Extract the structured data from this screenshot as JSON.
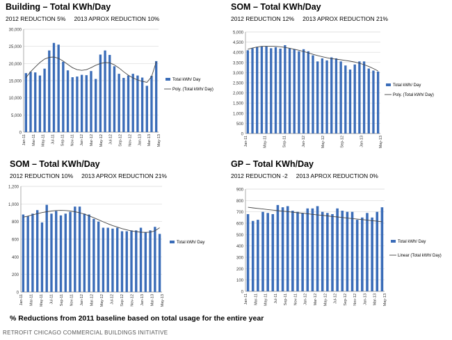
{
  "footnote": "% Reductions from 2011 baseline based on total usage for the entire year",
  "credit": "RETROFIT CHICAGO COMMERCIAL BUILDINGS INITIATIVE",
  "charts": [
    {
      "title": "Building – Total KWh/Day",
      "reduction_2012": "2012 REDUCTION 5%",
      "reduction_2013": "2013 APROX REDUCTION 10%"
    },
    {
      "title": "SOM – Total KWh/Day",
      "reduction_2012": "2012 REDUCTION 12%",
      "reduction_2013": "2013 APROX REDUCTION 21%"
    },
    {
      "title": "SOM – Total KWh/Day",
      "reduction_2012": "2012 REDUCTION 10%",
      "reduction_2013": "2013 APROX REDUCTION 21%"
    },
    {
      "title": "GP – Total KWh/Day",
      "reduction_2012": "2012 REDUCTION -2",
      "reduction_2013": "2013 APROX REDUCTION 0%"
    }
  ],
  "chart_data": [
    {
      "type": "bar",
      "title": "Building – Total KWh/Day",
      "series_name": "Total kWh/ Day",
      "trend_name": "Poly. (Total kWh/ Day)",
      "trend_type": "poly",
      "ylim": [
        0,
        30000
      ],
      "yticks": [
        "0",
        "5,000",
        "10,000",
        "15,000",
        "20,000",
        "25,000",
        "30,000"
      ],
      "ytick_values": [
        0,
        5000,
        10000,
        15000,
        20000,
        25000,
        30000
      ],
      "xlabels": [
        "Jan-11",
        "Mar-11",
        "May-11",
        "Jul-11",
        "Sep-11",
        "Nov-11",
        "Jan-12",
        "Mar-12",
        "May-12",
        "Jul-12",
        "Sep-12",
        "Nov-12",
        "Jan-13",
        "Mar-13",
        "May-13"
      ],
      "values": [
        17200,
        17600,
        17400,
        16500,
        18500,
        23800,
        26000,
        25500,
        20500,
        18000,
        16000,
        16200,
        16700,
        16600,
        17800,
        15500,
        22600,
        23800,
        22500,
        19200,
        17000,
        15800,
        16500,
        17000,
        16500,
        15900,
        13500,
        16400,
        20700
      ],
      "trend": [
        15900,
        17600,
        19000,
        20300,
        21300,
        21800,
        21900,
        21500,
        20700,
        19700,
        18800,
        18200,
        18000,
        18200,
        18800,
        19500,
        20000,
        20300,
        20200,
        19600,
        18700,
        17600,
        16600,
        15800,
        15200,
        14800,
        14500,
        16200,
        20500
      ]
    },
    {
      "type": "bar",
      "title": "SOM – Total KWh/Day",
      "series_name": "Total kWh/ Day",
      "trend_name": "Poly. (Total kWh/ Day)",
      "trend_type": "poly",
      "ylim": [
        0,
        5000
      ],
      "yticks": [
        "0",
        "500",
        "1,000",
        "1,500",
        "2,000",
        "2,500",
        "3,000",
        "3,500",
        "4,000",
        "4,500",
        "5,000"
      ],
      "ytick_values": [
        0,
        500,
        1000,
        1500,
        2000,
        2500,
        3000,
        3500,
        4000,
        4500,
        5000
      ],
      "xlabels": [
        "Jan-11",
        "May-11",
        "Sep-11",
        "Jan-12",
        "May-12",
        "Sep-12",
        "Jan-13",
        "May-13"
      ],
      "values": [
        4100,
        4200,
        4250,
        4300,
        4280,
        4200,
        4250,
        4180,
        4350,
        4200,
        4150,
        4050,
        4150,
        4050,
        3850,
        3550,
        3700,
        3600,
        3750,
        3700,
        3550,
        3350,
        3150,
        3400,
        3550,
        3550,
        3200,
        3100,
        3050
      ],
      "trend": [
        4150,
        4210,
        4260,
        4290,
        4300,
        4300,
        4290,
        4270,
        4240,
        4200,
        4150,
        4100,
        4040,
        3970,
        3900,
        3840,
        3780,
        3730,
        3690,
        3660,
        3630,
        3600,
        3560,
        3520,
        3460,
        3390,
        3300,
        3200,
        3080
      ]
    },
    {
      "type": "bar",
      "title": "SOM – Total KWh/Day",
      "series_name": "Total kWh/ Day",
      "trend_name": "",
      "trend_type": "poly",
      "ylim": [
        0,
        1200
      ],
      "yticks": [
        "0",
        "200",
        "400",
        "600",
        "800",
        "1,000",
        "1,200"
      ],
      "ytick_values": [
        0,
        200,
        400,
        600,
        800,
        1000,
        1200
      ],
      "xlabels": [
        "Jan-11",
        "Mar-11",
        "May-11",
        "Jul-11",
        "Sep-11",
        "Nov-11",
        "Jan-12",
        "Mar-12",
        "May-12",
        "Jul-12",
        "Sep-12",
        "Nov-12",
        "Jan-13",
        "Mar-13",
        "May-13"
      ],
      "values": [
        880,
        860,
        890,
        930,
        790,
        990,
        890,
        920,
        870,
        890,
        910,
        970,
        970,
        890,
        880,
        830,
        800,
        730,
        730,
        720,
        730,
        690,
        690,
        700,
        700,
        730,
        680,
        700,
        740,
        660
      ],
      "trend": [
        850,
        862,
        876,
        890,
        902,
        912,
        920,
        925,
        927,
        925,
        920,
        912,
        900,
        885,
        865,
        843,
        820,
        797,
        775,
        755,
        737,
        720,
        706,
        694,
        685,
        679,
        677,
        680,
        695,
        730
      ]
    },
    {
      "type": "bar",
      "title": "GP – Total KWh/Day",
      "series_name": "Total kWh/ Day",
      "trend_name": "Linear (Total kWh/ Day)",
      "trend_type": "linear",
      "ylim": [
        0,
        900
      ],
      "yticks": [
        "0",
        "100",
        "200",
        "300",
        "400",
        "500",
        "600",
        "700",
        "800",
        "900"
      ],
      "ytick_values": [
        0,
        100,
        200,
        300,
        400,
        500,
        600,
        700,
        800,
        900
      ],
      "xlabels": [
        "Jan-11",
        "Mar-11",
        "May-11",
        "Jul-11",
        "Sep-11",
        "Nov-11",
        "Jan-12",
        "Mar-12",
        "May-12",
        "Jul-12",
        "Sep-12",
        "Nov-12",
        "Jan-13",
        "Mar-13",
        "May-13"
      ],
      "values": [
        680,
        620,
        630,
        700,
        690,
        680,
        760,
        740,
        750,
        710,
        700,
        690,
        730,
        730,
        750,
        700,
        690,
        680,
        730,
        710,
        700,
        700,
        630,
        650,
        690,
        650,
        700,
        740
      ],
      "trend": [
        740,
        735,
        730,
        725,
        720,
        715,
        710,
        706,
        702,
        697,
        692,
        688,
        683,
        678,
        673,
        669,
        664,
        659,
        655,
        650,
        645,
        641,
        636,
        632,
        627,
        622,
        618,
        613
      ]
    }
  ]
}
